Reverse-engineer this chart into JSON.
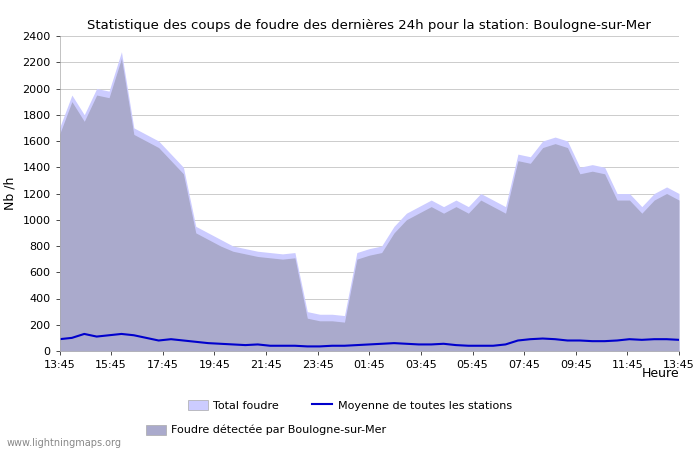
{
  "title": "Statistique des coups de foudre des dernières 24h pour la station: Boulogne-sur-Mer",
  "xlabel": "Heure",
  "ylabel": "Nb /h",
  "xlim_labels": [
    "13:45",
    "15:45",
    "17:45",
    "19:45",
    "21:45",
    "23:45",
    "01:45",
    "03:45",
    "05:45",
    "07:45",
    "09:45",
    "11:45",
    "13:45"
  ],
  "ylim": [
    0,
    2400
  ],
  "yticks": [
    0,
    200,
    400,
    600,
    800,
    1000,
    1200,
    1400,
    1600,
    1800,
    2000,
    2200,
    2400
  ],
  "bg_color": "#ffffff",
  "grid_color": "#cccccc",
  "area_total_color": "#ccccff",
  "area_local_color": "#aaaacc",
  "line_color": "#0000cc",
  "watermark": "www.lightningmaps.org",
  "legend_total": "Total foudre",
  "legend_moyenne": "Moyenne de toutes les stations",
  "legend_local": "Foudre détectée par Boulogne-sur-Mer",
  "total_foudre": [
    1700,
    1950,
    1800,
    2000,
    1980,
    2280,
    1700,
    1650,
    1600,
    1500,
    1400,
    950,
    900,
    850,
    800,
    780,
    760,
    750,
    740,
    750,
    300,
    280,
    280,
    270,
    750,
    780,
    800,
    950,
    1050,
    1100,
    1150,
    1100,
    1150,
    1100,
    1200,
    1150,
    1100,
    1500,
    1480,
    1600,
    1630,
    1600,
    1400,
    1420,
    1400,
    1200,
    1200,
    1100,
    1200,
    1250,
    1200
  ],
  "local_foudre": [
    1650,
    1900,
    1750,
    1950,
    1930,
    2230,
    1650,
    1600,
    1550,
    1450,
    1350,
    900,
    850,
    800,
    760,
    740,
    720,
    710,
    700,
    710,
    250,
    230,
    230,
    220,
    700,
    730,
    750,
    900,
    1000,
    1050,
    1100,
    1050,
    1100,
    1050,
    1150,
    1100,
    1050,
    1450,
    1430,
    1550,
    1580,
    1550,
    1350,
    1370,
    1350,
    1150,
    1150,
    1050,
    1150,
    1200,
    1150
  ],
  "moyenne": [
    90,
    100,
    130,
    110,
    120,
    130,
    120,
    100,
    80,
    90,
    80,
    70,
    60,
    55,
    50,
    45,
    50,
    40,
    40,
    40,
    35,
    35,
    40,
    40,
    45,
    50,
    55,
    60,
    55,
    50,
    50,
    55,
    45,
    40,
    40,
    40,
    50,
    80,
    90,
    95,
    90,
    80,
    80,
    75,
    75,
    80,
    90,
    85,
    90,
    90,
    85
  ]
}
